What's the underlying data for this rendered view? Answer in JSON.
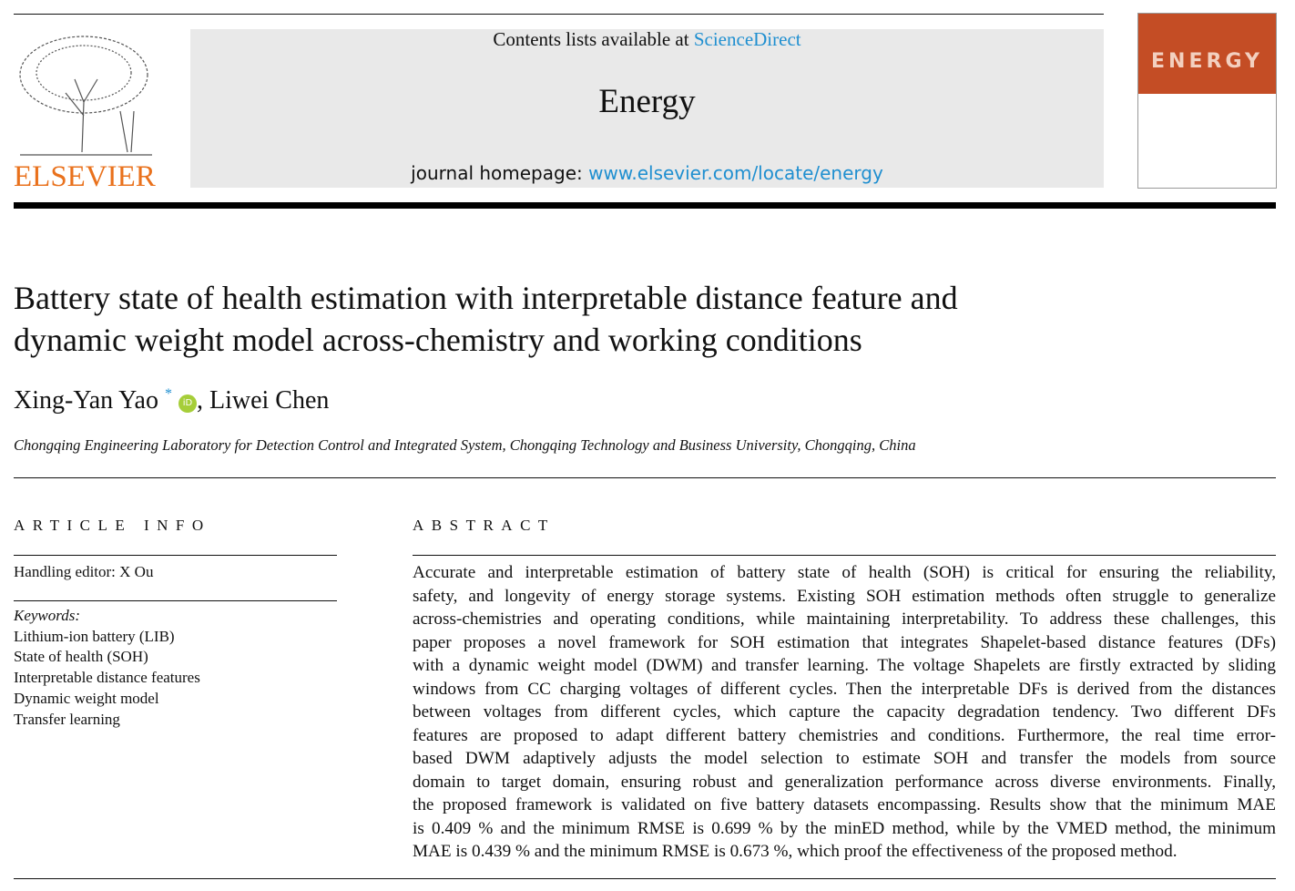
{
  "header": {
    "contents_prefix": "Contents lists available at ",
    "contents_link": "ScienceDirect",
    "journal": "Energy",
    "homepage_prefix": "journal homepage: ",
    "homepage_link": "www.elsevier.com/locate/energy",
    "publisher": "ELSEVIER",
    "cover_word": "ENERGY",
    "brand_color": "#e9711c",
    "cover_color": "#c44d25"
  },
  "article": {
    "title_lines": [
      "Battery state of health estimation with interpretable distance feature and",
      "dynamic weight model across-chemistry and working conditions"
    ],
    "author1": "Xing-Yan Yao",
    "author1_mark": "*",
    "orcid": "iD",
    "author2": ", Liwei Chen",
    "affiliation": "Chongqing Engineering Laboratory for Detection Control and Integrated System, Chongqing Technology and Business University, Chongqing, China"
  },
  "article_info": {
    "heading": "ARTICLE INFO",
    "handling_editor": "Handling editor: X Ou",
    "keywords_label": "Keywords:",
    "keywords": [
      "Lithium-ion battery (LIB)",
      "State of health (SOH)",
      "Interpretable distance features",
      "Dynamic weight model",
      "Transfer learning"
    ]
  },
  "abstract": {
    "heading": "ABSTRACT",
    "lines": [
      "Accurate and interpretable estimation of battery state of health (SOH) is critical for ensuring the reliability,",
      "safety, and longevity of energy storage systems. Existing SOH estimation methods often struggle to generalize",
      "across-chemistries and operating conditions, while maintaining interpretability. To address these challenges, this",
      "paper proposes a novel framework for SOH estimation that integrates Shapelet-based distance features (DFs)",
      "with a dynamic weight model (DWM) and transfer learning. The voltage Shapelets are firstly extracted by sliding",
      "windows from CC charging voltages of different cycles. Then the interpretable DFs is derived from the distances",
      "between voltages from different cycles, which capture the capacity degradation tendency. Two different DFs",
      "features are proposed to adapt different battery chemistries and conditions. Furthermore, the real time error-",
      "based DWM adaptively adjusts the model selection to estimate SOH and transfer the models from source",
      "domain to target domain, ensuring robust and generalization performance across diverse environments. Finally,",
      "the proposed framework is validated on five battery datasets encompassing. Results show that the minimum MAE",
      "is 0.409 % and the minimum RMSE is 0.699 % by the minED method, while by the VMED method, the minimum",
      "MAE is 0.439 % and the minimum RMSE is 0.673 %, which proof the effectiveness of the proposed method."
    ]
  }
}
